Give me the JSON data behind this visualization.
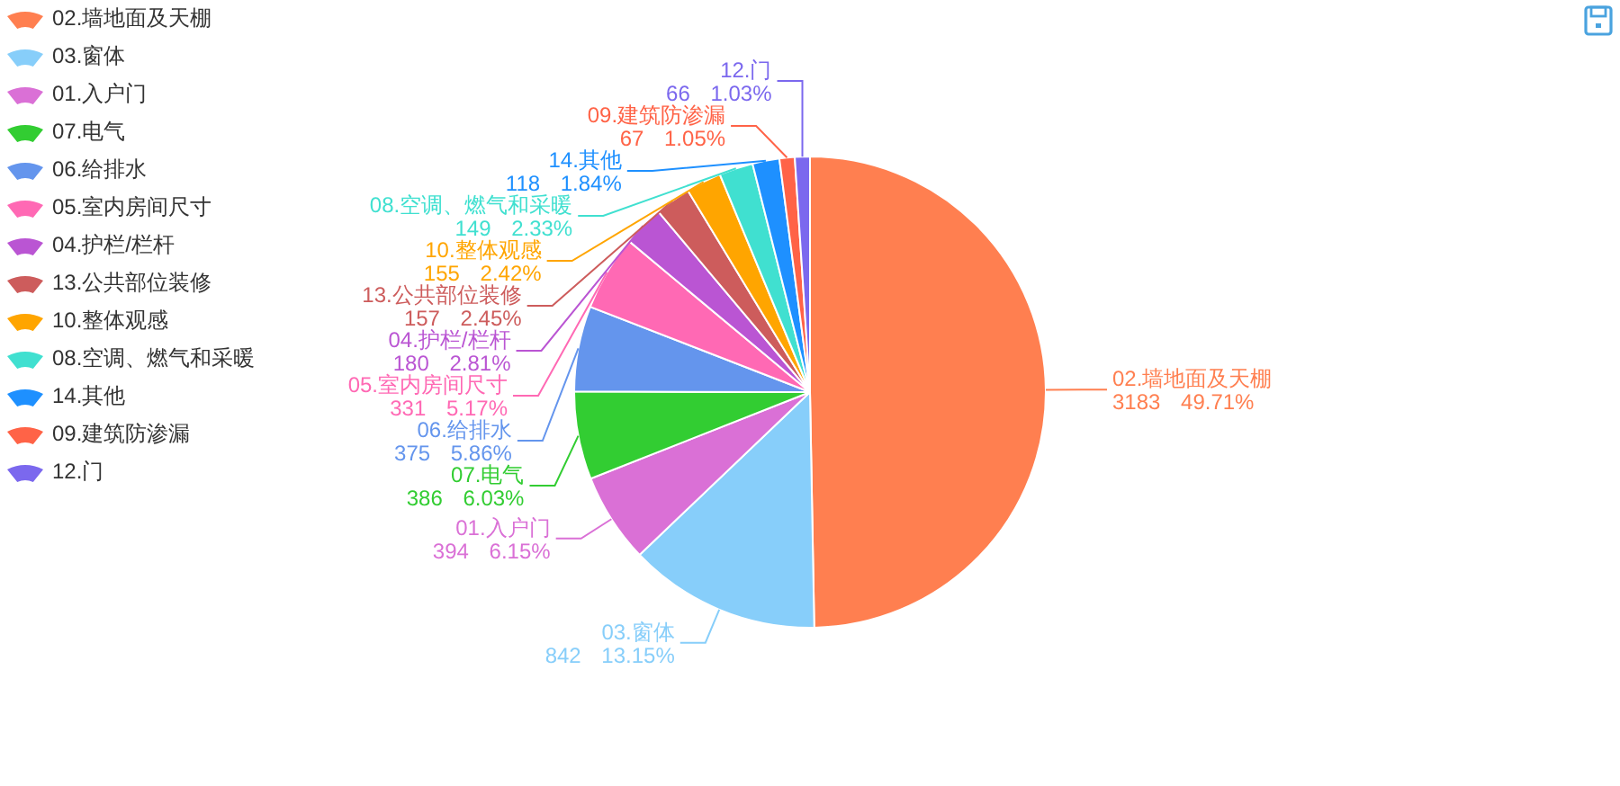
{
  "chart_data": {
    "type": "pie",
    "categories": [
      "02.墙地面及天棚",
      "03.窗体",
      "01.入户门",
      "07.电气",
      "06.给排水",
      "05.室内房间尺寸",
      "04.护栏/栏杆",
      "13.公共部位装修",
      "10.整体观感",
      "08.空调、燃气和采暖",
      "14.其他",
      "09.建筑防渗漏",
      "12.门"
    ],
    "values": [
      3183,
      842,
      394,
      386,
      375,
      331,
      180,
      157,
      155,
      149,
      118,
      67,
      66
    ],
    "colors": [
      "#ff7f50",
      "#87cefa",
      "#da70d6",
      "#32cd32",
      "#6495ed",
      "#ff69b4",
      "#ba55d3",
      "#cd5c5c",
      "#ffa500",
      "#40e0d0",
      "#1e90ff",
      "#ff6347",
      "#7b68ee"
    ],
    "value_labels": [
      "3183 49.71%",
      "842 13.15%",
      "394 6.15%",
      "386 6.03%",
      "375 5.86%",
      "331 5.17%",
      "180 2.81%",
      "157 2.45%",
      "155 2.42%",
      "149 2.33%",
      "118 1.84%",
      "67 1.05%",
      "66 1.03%"
    ],
    "legend": "top left"
  }
}
